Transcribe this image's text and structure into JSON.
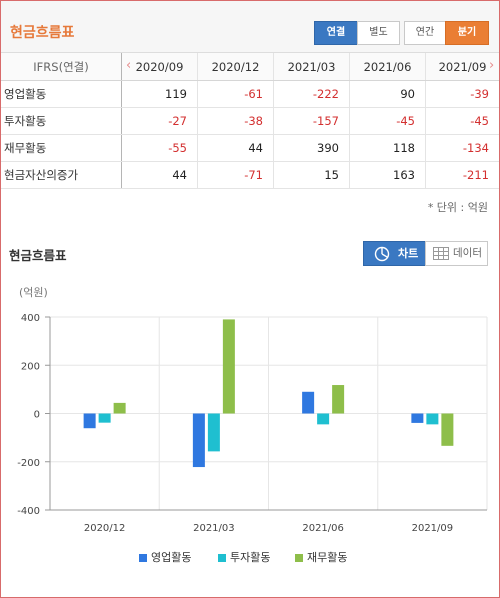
{
  "header": {
    "title": "현금흐름표",
    "buttons": {
      "consolidated": "연결",
      "separate": "별도",
      "annual": "연간",
      "quarterly": "분기"
    }
  },
  "table": {
    "label_header": "IFRS(연결)",
    "columns": [
      "2020/09",
      "2020/12",
      "2021/03",
      "2021/06",
      "2021/09"
    ],
    "rows": [
      {
        "label": "영업활동",
        "values": [
          "119",
          "-61",
          "-222",
          "90",
          "-39"
        ]
      },
      {
        "label": "투자활동",
        "values": [
          "-27",
          "-38",
          "-157",
          "-45",
          "-45"
        ]
      },
      {
        "label": "재무활동",
        "values": [
          "-55",
          "44",
          "390",
          "118",
          "-134"
        ]
      },
      {
        "label": "현금자산의증가",
        "values": [
          "44",
          "-71",
          "15",
          "163",
          "-211"
        ]
      }
    ]
  },
  "unit_note": "* 단위 : 억원",
  "chart_section": {
    "title": "현금흐름표",
    "chart_button": "차트",
    "data_button": "데이터",
    "unit_label": "(억원)"
  },
  "chart_data": {
    "type": "bar",
    "categories": [
      "2020/12",
      "2021/03",
      "2021/06",
      "2021/09"
    ],
    "series": [
      {
        "name": "영업활동",
        "values": [
          -61,
          -222,
          90,
          -39
        ],
        "color": "#2f78e0"
      },
      {
        "name": "투자활동",
        "values": [
          -38,
          -157,
          -45,
          -45
        ],
        "color": "#1fbfd0"
      },
      {
        "name": "재무활동",
        "values": [
          44,
          390,
          118,
          -134
        ],
        "color": "#8ebe4a"
      }
    ],
    "ylim": [
      -400,
      400
    ],
    "yticks": [
      "400",
      "200",
      "0",
      "-200",
      "-400"
    ],
    "grid": true,
    "legend": "bottom"
  }
}
